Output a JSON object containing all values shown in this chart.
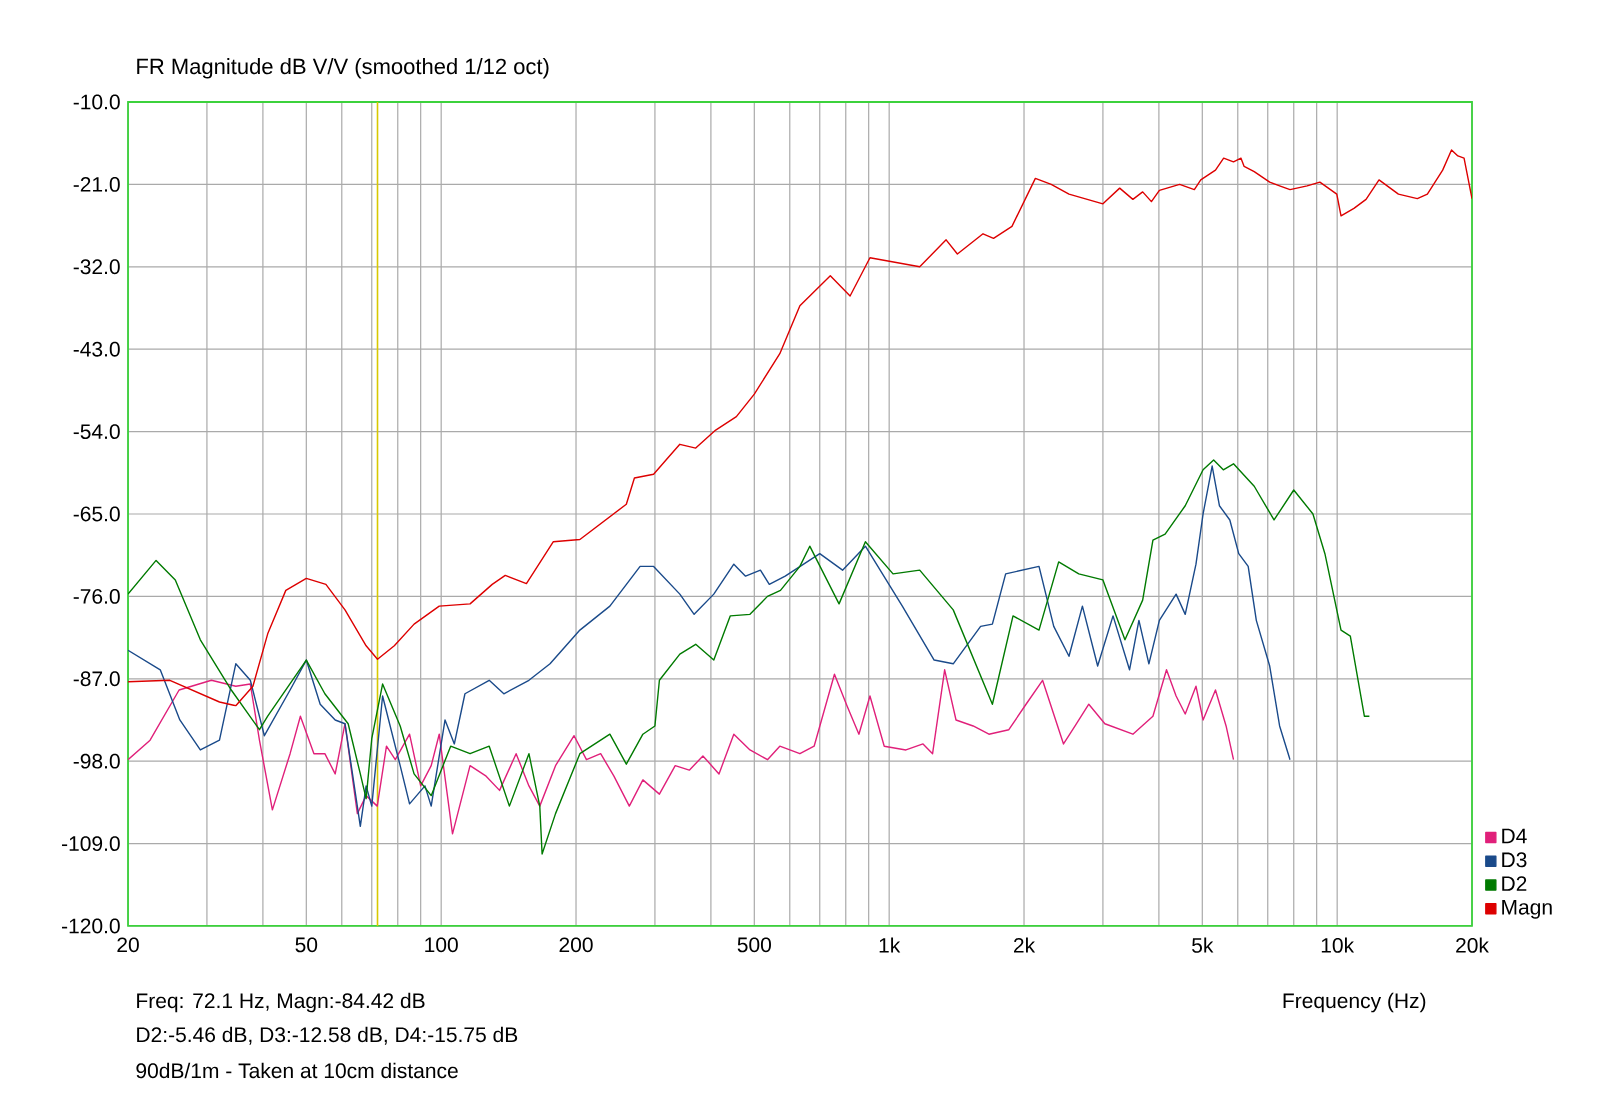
{
  "chart_data": {
    "type": "line",
    "title": "FR Magnitude dB V/V (smoothed 1/12 oct)",
    "xlabel": "Frequency (Hz)",
    "log": "x",
    "grid": true,
    "legend": "bottom right",
    "marker": "none",
    "line_style": "solid",
    "xlim": [
      20,
      20000
    ],
    "ylim": [
      -120,
      -10
    ],
    "xticks": [
      20,
      {
        "value": 30,
        "label": null
      },
      {
        "value": 40,
        "label": null
      },
      50,
      {
        "value": 60,
        "label": null
      },
      {
        "value": 70,
        "label": null
      },
      {
        "value": 80,
        "label": null
      },
      {
        "value": 90,
        "label": null
      },
      100,
      200,
      {
        "value": 300,
        "label": null
      },
      {
        "value": 400,
        "label": null
      },
      500,
      {
        "value": 600,
        "label": null
      },
      {
        "value": 700,
        "label": null
      },
      {
        "value": 800,
        "label": null
      },
      {
        "value": 900,
        "label": null
      },
      {
        "value": 1000,
        "label": "1k"
      },
      {
        "value": 2000,
        "label": "2k"
      },
      {
        "value": 3000,
        "label": null
      },
      {
        "value": 4000,
        "label": null
      },
      {
        "value": 5000,
        "label": "5k"
      },
      {
        "value": 6000,
        "label": null
      },
      {
        "value": 7000,
        "label": null
      },
      {
        "value": 8000,
        "label": null
      },
      {
        "value": 9000,
        "label": null
      },
      {
        "value": 10000,
        "label": "10k"
      },
      {
        "value": 20000,
        "label": "20k"
      }
    ],
    "yticks": [
      {
        "value": -120,
        "label": "-120.0"
      },
      {
        "value": -109,
        "label": "-109.0"
      },
      {
        "value": -98,
        "label": "-98.0"
      },
      {
        "value": -87,
        "label": "-87.0"
      },
      {
        "value": -76,
        "label": "-76.0"
      },
      {
        "value": -65,
        "label": "-65.0"
      },
      {
        "value": -54,
        "label": "-54.0"
      },
      {
        "value": -43,
        "label": "-43.0"
      },
      {
        "value": -32,
        "label": "-32.0"
      },
      {
        "value": -21,
        "label": "-21.0"
      },
      {
        "value": -10,
        "label": "-10.0"
      }
    ],
    "ref_lines": [
      {
        "axis": "x",
        "value": 72.1,
        "color": "#d8c800"
      }
    ],
    "annotations": [
      "Freq: 72.1 Hz, Magn:-84.42 dB",
      "D2:-5.46 dB, D3:-12.58 dB, D4:-15.75 dB",
      "90dB/1m - Taken at 10cm distance"
    ],
    "series": [
      {
        "name": "D4",
        "color": "#e0207a",
        "x": [
          20,
          22.4,
          26,
          30.7,
          34.8,
          37.5,
          39.3,
          42,
          46,
          48.5,
          52,
          55,
          58,
          61,
          65,
          68,
          72,
          75.5,
          79,
          85,
          90,
          95,
          99,
          106,
          116,
          126,
          135,
          147,
          157,
          166,
          180,
          198,
          211,
          227,
          243,
          263,
          282,
          307,
          333,
          358,
          384,
          417,
          450,
          489,
          535,
          570,
          632,
          680,
          755,
          805,
          856,
          906,
          975,
          1090,
          1190,
          1250,
          1330,
          1410,
          1540,
          1670,
          1850,
          2010,
          2200,
          2450,
          2600,
          2790,
          3030,
          3500,
          3880,
          4160,
          4370,
          4580,
          4840,
          5020,
          5350,
          5650,
          5870
        ],
        "values": [
          -97.8,
          -95.2,
          -88.5,
          -87.2,
          -88,
          -87.7,
          -95.2,
          -104.5,
          -97,
          -92,
          -97,
          -97,
          -99.7,
          -93,
          -105,
          -102.6,
          -104,
          -96,
          -97.8,
          -94.4,
          -101.3,
          -98.6,
          -94.4,
          -107.7,
          -98.6,
          -100,
          -101.9,
          -97,
          -101.3,
          -104,
          -98.6,
          -94.6,
          -97.8,
          -97,
          -100,
          -104,
          -100.5,
          -102.4,
          -98.6,
          -99.2,
          -97.3,
          -99.7,
          -94.4,
          -96.5,
          -97.8,
          -96,
          -97,
          -96,
          -86.4,
          -90.6,
          -94.4,
          -89.3,
          -96,
          -96.5,
          -95.7,
          -97,
          -85.8,
          -92.5,
          -93.3,
          -94.4,
          -93.8,
          -90.6,
          -87.2,
          -95.7,
          -93.3,
          -90.4,
          -93,
          -94.4,
          -92,
          -85.8,
          -89.3,
          -91.7,
          -88,
          -92.5,
          -88.5,
          -93.3,
          -97.8
        ]
      },
      {
        "name": "D3",
        "color": "#1a4a8a",
        "x": [
          20,
          23.6,
          26.1,
          29,
          32,
          34.8,
          37.5,
          40.3,
          46,
          50,
          53.7,
          58,
          61,
          66,
          68,
          70,
          74,
          81,
          85,
          92,
          95,
          102,
          107,
          113,
          128,
          138,
          157,
          175,
          204,
          238,
          278,
          298,
          341,
          367,
          406,
          450,
          478,
          516,
          540,
          586,
          700,
          787,
          885,
          1070,
          1260,
          1390,
          1600,
          1700,
          1820,
          2160,
          2330,
          2520,
          2700,
          2920,
          3160,
          3440,
          3610,
          3800,
          4010,
          4370,
          4580,
          4840,
          5020,
          5260,
          5460,
          5760,
          6030,
          6330,
          6600,
          7070,
          7440,
          7850
        ],
        "values": [
          -83.2,
          -85.8,
          -92.5,
          -96.5,
          -95.2,
          -85,
          -87.2,
          -94.6,
          -88.5,
          -84.5,
          -90.4,
          -92.5,
          -93,
          -106.7,
          -101.3,
          -104,
          -89.3,
          -98.6,
          -103.7,
          -101.3,
          -104,
          -92.5,
          -95.7,
          -89,
          -87.2,
          -89,
          -87.2,
          -85,
          -80.5,
          -77.3,
          -72,
          -72,
          -75.7,
          -78.4,
          -75.7,
          -71.7,
          -73.3,
          -72.5,
          -74.4,
          -73.3,
          -70.3,
          -72.5,
          -69.3,
          -77.3,
          -84.5,
          -85,
          -80,
          -79.7,
          -73,
          -72,
          -80,
          -84,
          -77.3,
          -85.3,
          -78.6,
          -85.8,
          -79.2,
          -85,
          -79.2,
          -75.7,
          -78.4,
          -71.7,
          -65,
          -58.6,
          -63.9,
          -65.8,
          -70.3,
          -72,
          -79.2,
          -85.3,
          -93.3,
          -97.8
        ]
      },
      {
        "name": "D2",
        "color": "#007a00",
        "x": [
          20,
          23.1,
          25.5,
          29,
          34,
          39.3,
          41,
          50,
          55,
          62,
          66,
          68,
          70,
          74,
          81,
          87,
          95,
          105,
          116,
          128,
          142,
          157,
          166,
          168,
          180,
          204,
          238,
          259,
          282,
          300,
          307,
          341,
          370,
          406,
          442,
          489,
          535,
          572,
          632,
          665,
          773,
          885,
          1020,
          1170,
          1390,
          1700,
          1890,
          2160,
          2390,
          2650,
          3000,
          3360,
          3680,
          3880,
          4130,
          4580,
          5020,
          5300,
          5570,
          5870,
          6530,
          7230,
          8000,
          8830,
          9390,
          10200,
          10700,
          11500,
          11800
        ],
        "values": [
          -75.7,
          -71.2,
          -73.8,
          -81.8,
          -88.5,
          -93.8,
          -92,
          -84.5,
          -89,
          -93,
          -99.7,
          -103,
          -95,
          -87.7,
          -93.3,
          -99.7,
          -102.6,
          -96,
          -97,
          -96,
          -104,
          -97,
          -104,
          -110.4,
          -105,
          -97,
          -94.4,
          -98.4,
          -94.4,
          -93.3,
          -87.2,
          -83.7,
          -82.4,
          -84.5,
          -78.6,
          -78.4,
          -76,
          -75.2,
          -72,
          -69.3,
          -77,
          -68.7,
          -73,
          -72.5,
          -77.8,
          -90.4,
          -78.6,
          -80.5,
          -71.4,
          -73,
          -73.8,
          -81.8,
          -76.5,
          -68.5,
          -67.7,
          -63.9,
          -59.1,
          -57.8,
          -59.1,
          -58.3,
          -61.3,
          -65.8,
          -61.8,
          -65,
          -70.3,
          -80.5,
          -81.3,
          -92,
          -92
        ]
      },
      {
        "name": "Magn",
        "color": "#dd0000",
        "x": [
          20,
          24.8,
          32,
          34.8,
          38,
          41,
          45,
          50,
          55.3,
          61,
          68,
          72.1,
          78.6,
          87,
          99,
          116,
          130,
          139,
          155,
          178,
          204,
          259,
          270,
          298,
          323,
          341,
          370,
          410,
          456,
          500,
          570,
          632,
          739,
          818,
          906,
          1170,
          1340,
          1420,
          1620,
          1710,
          1880,
          2120,
          2300,
          2520,
          3000,
          3270,
          3500,
          3680,
          3850,
          4010,
          4450,
          4800,
          4960,
          5350,
          5580,
          5870,
          6100,
          6200,
          6530,
          7070,
          7440,
          7850,
          8570,
          9150,
          9980,
          10200,
          10900,
          11600,
          12400,
          13700,
          15100,
          15900,
          17200,
          18000,
          18600,
          19200,
          20000
        ],
        "values": [
          -87.4,
          -87.2,
          -90.1,
          -90.6,
          -88,
          -81,
          -75.2,
          -73.6,
          -74.4,
          -77.8,
          -82.6,
          -84.4,
          -82.6,
          -79.7,
          -77.3,
          -77,
          -74.4,
          -73.2,
          -74.3,
          -68.7,
          -68.4,
          -63.7,
          -60.2,
          -59.7,
          -57.3,
          -55.7,
          -56.2,
          -53.8,
          -52,
          -49,
          -43.6,
          -37.2,
          -33.2,
          -35.9,
          -30.8,
          -32,
          -28.4,
          -30.3,
          -27.6,
          -28.2,
          -26.6,
          -20.2,
          -21,
          -22.3,
          -23.6,
          -21.5,
          -23,
          -22,
          -23.3,
          -21.8,
          -21,
          -21.7,
          -20.4,
          -19.1,
          -17.5,
          -18,
          -17.5,
          -18.6,
          -19.3,
          -20.7,
          -21.2,
          -21.7,
          -21.2,
          -20.7,
          -22.3,
          -25.2,
          -24.2,
          -23,
          -20.4,
          -22.3,
          -22.9,
          -22.3,
          -19.1,
          -16.4,
          -17.2,
          -17.5,
          -22.9
        ]
      }
    ]
  }
}
